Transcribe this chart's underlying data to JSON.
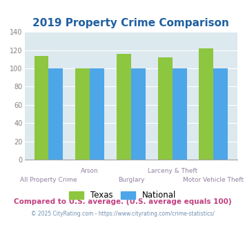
{
  "title": "2019 Property Crime Comparison",
  "categories": [
    "All Property Crime",
    "Arson",
    "Burglary",
    "Larceny & Theft",
    "Motor Vehicle Theft"
  ],
  "texas_values": [
    114,
    100,
    116,
    112,
    122
  ],
  "national_values": [
    100,
    100,
    100,
    100,
    100
  ],
  "texas_color": "#8dc63f",
  "national_color": "#4da6e8",
  "ylim": [
    0,
    140
  ],
  "yticks": [
    0,
    20,
    40,
    60,
    80,
    100,
    120,
    140
  ],
  "xlabel_top": [
    "",
    "Arson",
    "",
    "Larceny & Theft",
    ""
  ],
  "xlabel_bottom": [
    "All Property Crime",
    "",
    "Burglary",
    "",
    "Motor Vehicle Theft"
  ],
  "legend_texas": "Texas",
  "legend_national": "National",
  "footnote1": "Compared to U.S. average. (U.S. average equals 100)",
  "footnote2": "© 2025 CityRating.com - https://www.cityrating.com/crime-statistics/",
  "title_color": "#2060a0",
  "bg_color": "#dce9ef",
  "footnote1_color": "#c04080",
  "footnote2_color": "#7090b0",
  "xticklabel_color": "#9080a0",
  "ytick_color": "#808080",
  "bar_width": 0.35
}
